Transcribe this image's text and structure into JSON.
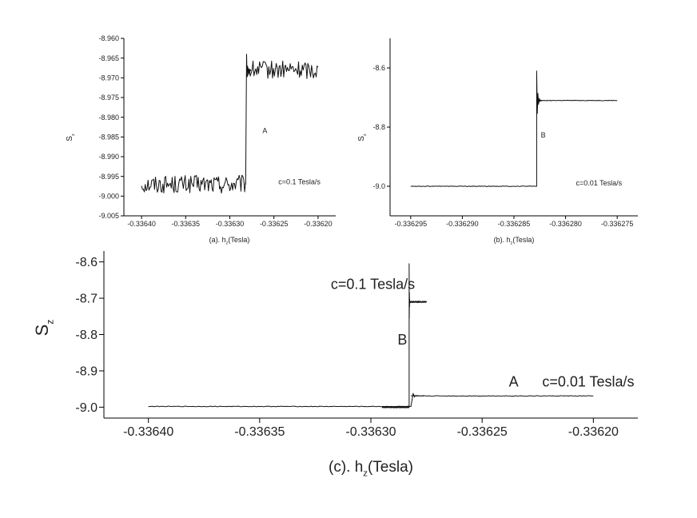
{
  "chart_data": [
    {
      "id": "a",
      "type": "line",
      "xlabel_prefix": "(a).",
      "xlabel_var": "h",
      "xlabel_sub": "z",
      "xlabel_unit": "(Tesla)",
      "ylabel_var": "S",
      "ylabel_sub": "z",
      "xlim": [
        -0.33642,
        -0.33618
      ],
      "ylim": [
        -9.005,
        -8.96
      ],
      "xticks": [
        -0.3364,
        -0.33635,
        -0.3363,
        -0.33625,
        -0.3362
      ],
      "xtick_labels": [
        "-0.33640",
        "-0.33635",
        "-0.33630",
        "-0.33625",
        "-0.33620"
      ],
      "yticks": [
        -9.005,
        -9.0,
        -8.995,
        -8.99,
        -8.985,
        -8.98,
        -8.975,
        -8.97,
        -8.965,
        -8.96
      ],
      "ytick_labels": [
        "-9.005",
        "-9.000",
        "-8.995",
        "-8.990",
        "-8.985",
        "-8.980",
        "-8.975",
        "-8.970",
        "-8.965",
        "-8.960"
      ],
      "annotations": [
        {
          "text": "A",
          "x": -0.336263,
          "y": -8.984
        },
        {
          "text": "c=0.1 Tesla/s",
          "x": -0.336245,
          "y": -8.997
        }
      ],
      "series": [
        {
          "noisy": true,
          "x_start": -0.3364,
          "x_end": -0.3362,
          "step_x": -0.336282,
          "before_level": -8.997,
          "after_level": -8.968,
          "noise": 0.0023,
          "spike": {
            "x": -0.336281,
            "y": -8.964
          }
        }
      ]
    },
    {
      "id": "b",
      "type": "line",
      "xlabel_prefix": "(b).",
      "xlabel_var": "h",
      "xlabel_sub": "z",
      "xlabel_unit": "(Tesla)",
      "ylabel_var": "S",
      "ylabel_sub": "z",
      "xlim": [
        -0.336297,
        -0.336273
      ],
      "ylim": [
        -9.1,
        -8.5
      ],
      "xticks": [
        -0.336295,
        -0.33629,
        -0.336285,
        -0.33628,
        -0.336275
      ],
      "xtick_labels": [
        "-0.336295",
        "-0.336290",
        "-0.336285",
        "-0.336280",
        "-0.336275"
      ],
      "yticks": [
        -9.0,
        -8.8,
        -8.6
      ],
      "ytick_labels": [
        "-9.0",
        "-8.8",
        "-8.6"
      ],
      "annotations": [
        {
          "text": "B",
          "x": -0.3362824,
          "y": -8.835
        },
        {
          "text": "c=0.01 Tesla/s",
          "x": -0.336279,
          "y": -8.997
        }
      ],
      "series": [
        {
          "noisy": false,
          "x_start": -0.336295,
          "x_end": -0.336275,
          "step_x": -0.3362828,
          "before_level": -9.0,
          "after_level": -8.71,
          "noise": 0.0015,
          "spike": {
            "x": -0.3362828,
            "y": -8.61
          }
        }
      ]
    },
    {
      "id": "c",
      "type": "line",
      "xlabel_prefix": "(c).",
      "xlabel_var": "h",
      "xlabel_sub": "z",
      "xlabel_unit": "(Tesla)",
      "ylabel_var": "S",
      "ylabel_sub": "z",
      "xlim": [
        -0.33642,
        -0.33618
      ],
      "ylim": [
        -9.03,
        -8.57
      ],
      "xticks": [
        -0.3364,
        -0.33635,
        -0.3363,
        -0.33625,
        -0.3362
      ],
      "xtick_labels": [
        "-0.33640",
        "-0.33635",
        "-0.33630",
        "-0.33625",
        "-0.33620"
      ],
      "yticks": [
        -9.0,
        -8.9,
        -8.8,
        -8.7,
        -8.6
      ],
      "ytick_labels": [
        "-9.0",
        "-8.9",
        "-8.8",
        "-8.7",
        "-8.6"
      ],
      "annotations": [
        {
          "text": "c=0.1 Tesla/s",
          "x": -0.336318,
          "y": -8.675
        },
        {
          "text": "B",
          "x": -0.336288,
          "y": -8.828
        },
        {
          "text": "A",
          "x": -0.336238,
          "y": -8.943
        },
        {
          "text": "c=0.01 Tesla/s",
          "x": -0.336223,
          "y": -8.943
        }
      ],
      "series": [
        {
          "noisy": false,
          "x_start": -0.3364,
          "x_end": -0.3362,
          "step_x": -0.336282,
          "before_level": -8.998,
          "after_level": -8.969,
          "noise": 0.0012,
          "spike": {
            "x": -0.336281,
            "y": -8.962
          }
        },
        {
          "noisy": false,
          "x_start": -0.336295,
          "x_end": -0.336275,
          "step_x": -0.3362828,
          "before_level": -9.0,
          "after_level": -8.71,
          "noise": 0.003,
          "spike": {
            "x": -0.3362828,
            "y": -8.605
          }
        }
      ]
    }
  ]
}
